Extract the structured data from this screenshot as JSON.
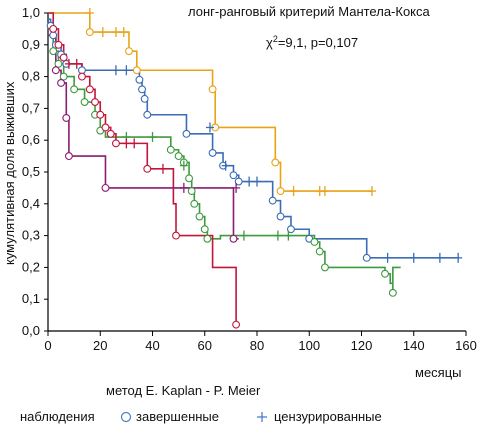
{
  "chart_data": {
    "type": "line",
    "subtype": "kaplan-meier",
    "title": "лонг-ранговый критерий Мантела-Кокса",
    "statistic": {
      "chi": "χ",
      "sup": "2",
      "text": "=9,1, p=0,107"
    },
    "xlabel": "месяцы",
    "ylabel": "кумулятивная доля выживших",
    "xlim": [
      0,
      160
    ],
    "ylim": [
      0,
      1
    ],
    "x_ticks": [
      "0",
      "20",
      "40",
      "60",
      "80",
      "100",
      "120",
      "140",
      "160"
    ],
    "y_ticks": [
      "0,0",
      "0,1",
      "0,2",
      "0,3",
      "0,4",
      "0,5",
      "0,6",
      "0,7",
      "0,8",
      "0,9",
      "1,0"
    ],
    "grid": false,
    "method": "метод E. Kaplan - P. Meier",
    "legend": {
      "title": "наблюдения",
      "complete": "завершенные",
      "censored": "цензурированные"
    },
    "series": [
      {
        "color": "#e8a317",
        "steps": [
          [
            0,
            1.0
          ],
          [
            15,
            1.0
          ],
          [
            16,
            0.94
          ],
          [
            30,
            0.94
          ],
          [
            31,
            0.88
          ],
          [
            34,
            0.82
          ],
          [
            62,
            0.82
          ],
          [
            63,
            0.76
          ],
          [
            64,
            0.64
          ],
          [
            86,
            0.64
          ],
          [
            87,
            0.53
          ],
          [
            89,
            0.44
          ],
          [
            124,
            0.44
          ]
        ],
        "complete": [
          [
            16,
            0.94
          ],
          [
            31,
            0.88
          ],
          [
            34,
            0.82
          ],
          [
            63,
            0.76
          ],
          [
            64,
            0.64
          ],
          [
            87,
            0.53
          ],
          [
            89,
            0.44
          ]
        ],
        "censored": [
          [
            16,
            1.0
          ],
          [
            21,
            0.94
          ],
          [
            26,
            0.94
          ],
          [
            29,
            0.94
          ],
          [
            94,
            0.44
          ],
          [
            104,
            0.44
          ],
          [
            106,
            0.44
          ],
          [
            124,
            0.44
          ]
        ]
      },
      {
        "color": "#3a6db5",
        "steps": [
          [
            0,
            0.98
          ],
          [
            1,
            0.96
          ],
          [
            2,
            0.93
          ],
          [
            3,
            0.9
          ],
          [
            5,
            0.87
          ],
          [
            7,
            0.84
          ],
          [
            11,
            0.84
          ],
          [
            13,
            0.82
          ],
          [
            34,
            0.82
          ],
          [
            35,
            0.79
          ],
          [
            36,
            0.76
          ],
          [
            37,
            0.73
          ],
          [
            38,
            0.68
          ],
          [
            52,
            0.68
          ],
          [
            53,
            0.62
          ],
          [
            62,
            0.62
          ],
          [
            63,
            0.56
          ],
          [
            67,
            0.52
          ],
          [
            71,
            0.49
          ],
          [
            73,
            0.47
          ],
          [
            85,
            0.47
          ],
          [
            86,
            0.41
          ],
          [
            89,
            0.36
          ],
          [
            93,
            0.32
          ],
          [
            98,
            0.32
          ],
          [
            100,
            0.29
          ],
          [
            121,
            0.29
          ],
          [
            122,
            0.23
          ],
          [
            157,
            0.23
          ]
        ],
        "complete": [
          [
            1,
            0.96
          ],
          [
            2,
            0.93
          ],
          [
            3,
            0.9
          ],
          [
            5,
            0.87
          ],
          [
            7,
            0.84
          ],
          [
            13,
            0.82
          ],
          [
            35,
            0.79
          ],
          [
            36,
            0.76
          ],
          [
            37,
            0.73
          ],
          [
            38,
            0.68
          ],
          [
            53,
            0.62
          ],
          [
            63,
            0.56
          ],
          [
            67,
            0.52
          ],
          [
            71,
            0.49
          ],
          [
            73,
            0.47
          ],
          [
            86,
            0.41
          ],
          [
            89,
            0.36
          ],
          [
            93,
            0.32
          ],
          [
            100,
            0.29
          ],
          [
            122,
            0.23
          ]
        ],
        "censored": [
          [
            26,
            0.82
          ],
          [
            30,
            0.82
          ],
          [
            62,
            0.64
          ],
          [
            68,
            0.52
          ],
          [
            77,
            0.47
          ],
          [
            80,
            0.47
          ],
          [
            130,
            0.23
          ],
          [
            140,
            0.23
          ],
          [
            150,
            0.23
          ],
          [
            157,
            0.23
          ]
        ]
      },
      {
        "color": "#3f9a3f",
        "steps": [
          [
            0,
            0.93
          ],
          [
            2,
            0.88
          ],
          [
            4,
            0.84
          ],
          [
            6,
            0.8
          ],
          [
            10,
            0.76
          ],
          [
            14,
            0.72
          ],
          [
            18,
            0.68
          ],
          [
            20,
            0.63
          ],
          [
            22,
            0.61
          ],
          [
            46,
            0.61
          ],
          [
            47,
            0.57
          ],
          [
            50,
            0.55
          ],
          [
            52,
            0.53
          ],
          [
            54,
            0.48
          ],
          [
            55,
            0.44
          ],
          [
            56,
            0.4
          ],
          [
            58,
            0.36
          ],
          [
            60,
            0.32
          ],
          [
            61,
            0.29
          ],
          [
            64,
            0.29
          ],
          [
            66,
            0.3
          ],
          [
            100,
            0.3
          ],
          [
            102,
            0.28
          ],
          [
            104,
            0.25
          ],
          [
            106,
            0.2
          ],
          [
            128,
            0.2
          ],
          [
            129,
            0.18
          ],
          [
            131,
            0.15
          ],
          [
            132,
            0.12
          ],
          [
            132,
            0.2
          ],
          [
            135,
            0.2
          ]
        ],
        "complete": [
          [
            2,
            0.88
          ],
          [
            4,
            0.84
          ],
          [
            6,
            0.8
          ],
          [
            10,
            0.76
          ],
          [
            14,
            0.72
          ],
          [
            18,
            0.68
          ],
          [
            20,
            0.63
          ],
          [
            47,
            0.57
          ],
          [
            50,
            0.55
          ],
          [
            52,
            0.53
          ],
          [
            54,
            0.48
          ],
          [
            55,
            0.44
          ],
          [
            56,
            0.4
          ],
          [
            58,
            0.36
          ],
          [
            60,
            0.32
          ],
          [
            61,
            0.29
          ],
          [
            102,
            0.28
          ],
          [
            104,
            0.25
          ],
          [
            106,
            0.2
          ],
          [
            129,
            0.18
          ],
          [
            132,
            0.12
          ]
        ],
        "censored": [
          [
            30,
            0.61
          ],
          [
            40,
            0.61
          ],
          [
            52,
            0.52
          ],
          [
            75,
            0.3
          ],
          [
            88,
            0.3
          ],
          [
            92,
            0.3
          ]
        ]
      },
      {
        "color": "#c0163a",
        "steps": [
          [
            0,
            1.0
          ],
          [
            2,
            0.95
          ],
          [
            4,
            0.9
          ],
          [
            6,
            0.86
          ],
          [
            7,
            0.84
          ],
          [
            11,
            0.84
          ],
          [
            13,
            0.8
          ],
          [
            16,
            0.76
          ],
          [
            18,
            0.72
          ],
          [
            20,
            0.68
          ],
          [
            22,
            0.64
          ],
          [
            24,
            0.62
          ],
          [
            26,
            0.59
          ],
          [
            36,
            0.59
          ],
          [
            38,
            0.51
          ],
          [
            46,
            0.51
          ],
          [
            48,
            0.4
          ],
          [
            49,
            0.3
          ],
          [
            62,
            0.3
          ],
          [
            63,
            0.2
          ],
          [
            71,
            0.2
          ],
          [
            72,
            0.02
          ]
        ],
        "complete": [
          [
            2,
            0.95
          ],
          [
            4,
            0.9
          ],
          [
            6,
            0.86
          ],
          [
            13,
            0.8
          ],
          [
            16,
            0.76
          ],
          [
            18,
            0.72
          ],
          [
            20,
            0.68
          ],
          [
            22,
            0.64
          ],
          [
            24,
            0.62
          ],
          [
            26,
            0.59
          ],
          [
            38,
            0.51
          ],
          [
            49,
            0.3
          ],
          [
            72,
            0.02
          ]
        ],
        "censored": [
          [
            8,
            0.84
          ],
          [
            11,
            0.84
          ],
          [
            30,
            0.59
          ],
          [
            33,
            0.59
          ],
          [
            44,
            0.51
          ]
        ]
      },
      {
        "color": "#8a1c74",
        "steps": [
          [
            0,
            0.93
          ],
          [
            3,
            0.82
          ],
          [
            5,
            0.78
          ],
          [
            7,
            0.67
          ],
          [
            8,
            0.55
          ],
          [
            21,
            0.55
          ],
          [
            22,
            0.45
          ],
          [
            70,
            0.45
          ],
          [
            71,
            0.29
          ],
          [
            73,
            0.29
          ]
        ],
        "complete": [
          [
            3,
            0.82
          ],
          [
            5,
            0.78
          ],
          [
            7,
            0.67
          ],
          [
            8,
            0.55
          ],
          [
            22,
            0.45
          ],
          [
            71,
            0.29
          ]
        ],
        "censored": [
          [
            52,
            0.45
          ],
          [
            72,
            0.45
          ]
        ]
      }
    ]
  }
}
